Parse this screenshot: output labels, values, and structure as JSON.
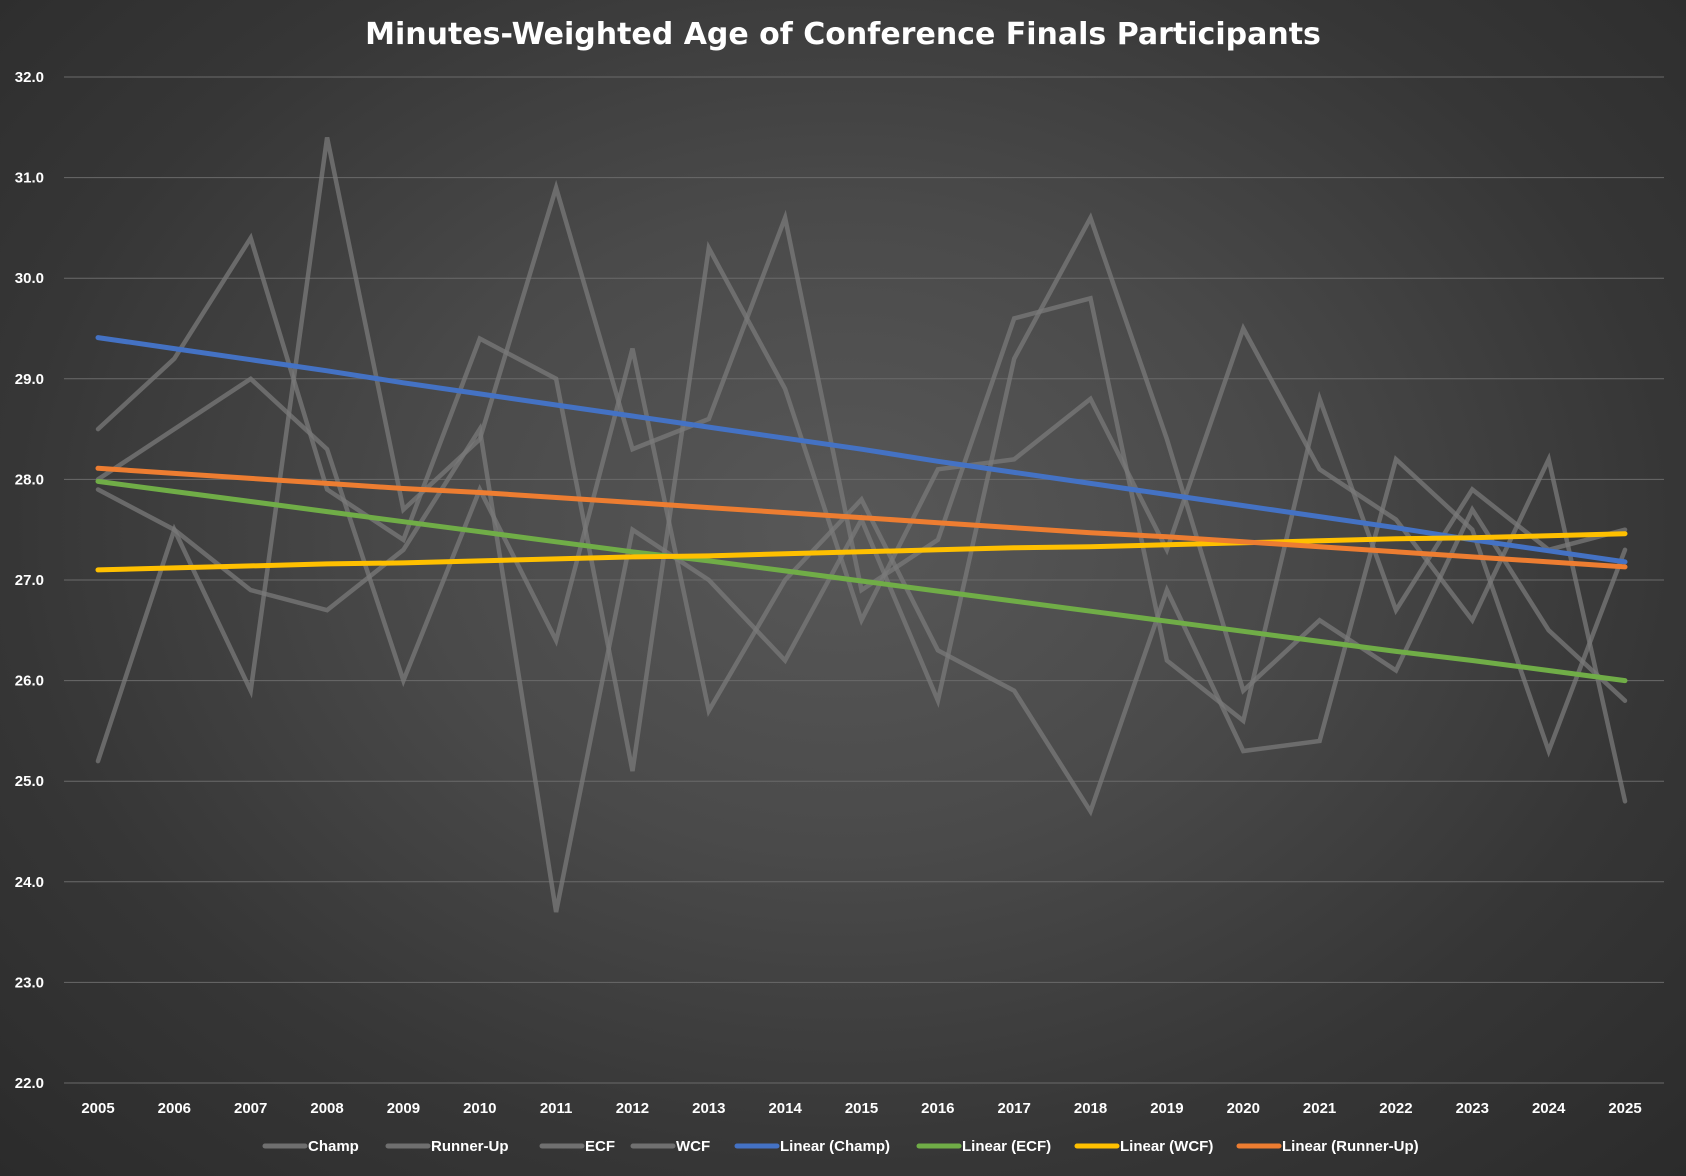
{
  "chart_data": {
    "type": "line",
    "title": "Minutes-Weighted Age of Conference Finals Participants",
    "xlabel": "",
    "ylabel": "",
    "ylim": [
      22.0,
      32.0
    ],
    "y_ticks": [
      "22.0",
      "23.0",
      "24.0",
      "25.0",
      "26.0",
      "27.0",
      "28.0",
      "29.0",
      "30.0",
      "31.0",
      "32.0"
    ],
    "x": [
      "2005",
      "2006",
      "2007",
      "2008",
      "2009",
      "2010",
      "2011",
      "2012",
      "2013",
      "2014",
      "2015",
      "2016",
      "2017",
      "2018",
      "2019",
      "2020",
      "2021",
      "2022",
      "2023",
      "2024",
      "2025"
    ],
    "grid": true,
    "legend_position": "bottom",
    "series": [
      {
        "name": "Champ",
        "color": "#7a7a7a",
        "values": [
          28.5,
          29.2,
          30.4,
          27.9,
          27.4,
          29.4,
          29.0,
          25.1,
          30.3,
          28.9,
          26.6,
          28.1,
          28.2,
          28.8,
          27.3,
          29.5,
          28.1,
          27.6,
          26.6,
          28.2,
          24.8
        ]
      },
      {
        "name": "Runner-Up",
        "color": "#7a7a7a",
        "values": [
          25.2,
          27.5,
          25.9,
          31.4,
          27.7,
          28.4,
          30.9,
          28.3,
          28.6,
          30.6,
          26.9,
          27.4,
          29.6,
          29.8,
          26.2,
          25.6,
          28.8,
          26.7,
          27.9,
          27.3,
          27.5
        ]
      },
      {
        "name": "ECF",
        "color": "#7a7a7a",
        "values": [
          28.0,
          28.5,
          29.0,
          28.3,
          26.0,
          27.9,
          26.4,
          29.3,
          25.7,
          27.0,
          27.8,
          26.3,
          25.9,
          24.7,
          26.9,
          25.3,
          25.4,
          28.2,
          27.5,
          25.3,
          27.3
        ]
      },
      {
        "name": "WCF",
        "color": "#7a7a7a",
        "values": [
          27.9,
          27.5,
          26.9,
          26.7,
          27.3,
          28.5,
          23.7,
          27.5,
          27.0,
          26.2,
          27.6,
          25.8,
          29.2,
          30.6,
          28.4,
          25.9,
          26.6,
          26.1,
          27.7,
          26.5,
          25.8
        ]
      },
      {
        "name": "Linear (Champ)",
        "color": "#4472C4",
        "trendline": true,
        "values": [
          29.41,
          29.3,
          29.19,
          29.08,
          28.96,
          28.85,
          28.74,
          28.63,
          28.52,
          28.41,
          28.3,
          28.18,
          28.07,
          27.96,
          27.85,
          27.74,
          27.63,
          27.52,
          27.4,
          27.29,
          27.18
        ]
      },
      {
        "name": "Linear (ECF)",
        "color": "#70AD47",
        "trendline": true,
        "values": [
          27.98,
          27.88,
          27.78,
          27.68,
          27.58,
          27.48,
          27.38,
          27.28,
          27.19,
          27.09,
          26.99,
          26.89,
          26.79,
          26.69,
          26.59,
          26.49,
          26.39,
          26.29,
          26.2,
          26.1,
          26.0
        ]
      },
      {
        "name": "Linear (WCF)",
        "color": "#FFC000",
        "trendline": true,
        "values": [
          27.1,
          27.12,
          27.14,
          27.16,
          27.17,
          27.19,
          27.21,
          27.23,
          27.24,
          27.26,
          27.28,
          27.3,
          27.32,
          27.33,
          27.35,
          27.37,
          27.39,
          27.41,
          27.42,
          27.44,
          27.46
        ]
      },
      {
        "name": "Linear (Runner-Up)",
        "color": "#ED7D31",
        "trendline": true,
        "values": [
          28.11,
          28.06,
          28.01,
          27.96,
          27.91,
          27.87,
          27.82,
          27.77,
          27.72,
          27.67,
          27.62,
          27.57,
          27.52,
          27.47,
          27.43,
          27.38,
          27.33,
          27.28,
          27.23,
          27.18,
          27.13
        ]
      }
    ]
  }
}
